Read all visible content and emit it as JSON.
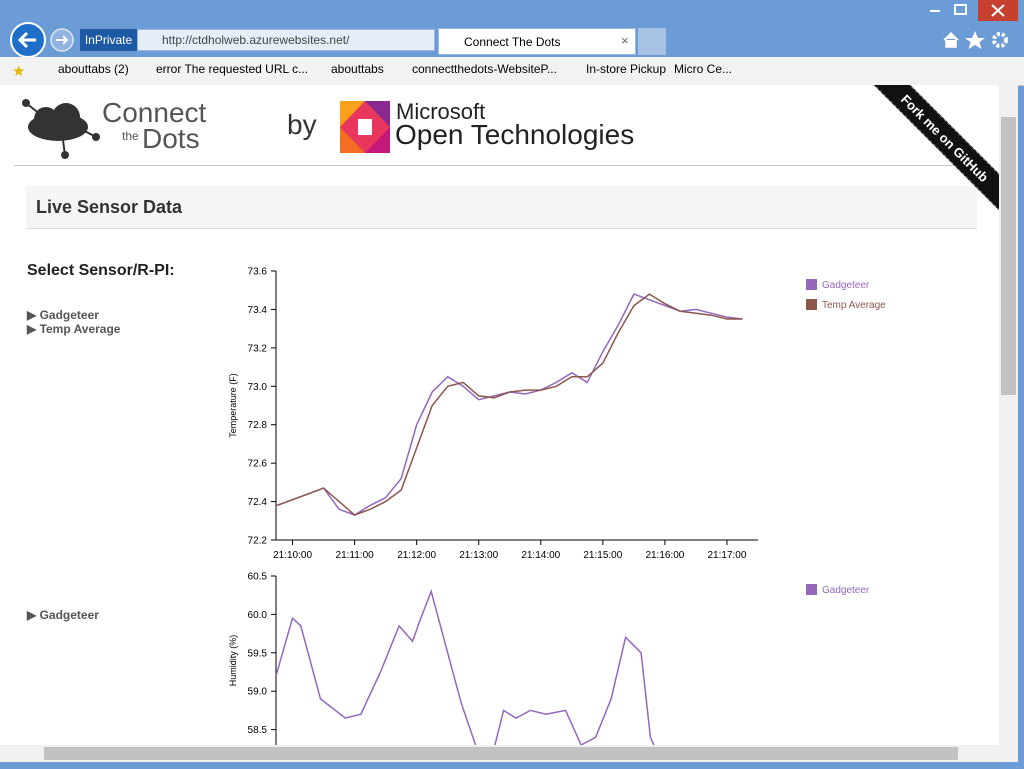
{
  "browser": {
    "in_private": "InPrivate",
    "address": "http://ctdholweb.azurewebsites.net/",
    "tab": "Connect The Dots",
    "favorites": [
      "abouttabs (2)",
      "error The requested URL c...",
      "abouttabs",
      "connectthedots-WebsiteP...",
      "In-store Pickup",
      "Micro Ce..."
    ]
  },
  "header": {
    "logo_connect": "Connect",
    "logo_the": "the",
    "logo_dots": "Dots",
    "by": "by",
    "ms_company": "Microsoft",
    "ms_product": "Open Technologies",
    "ribbon": "Fork me on GitHub"
  },
  "panel_title": "Live Sensor Data",
  "sidebar": {
    "heading": "Select Sensor/R-PI:",
    "groups": [
      [
        "▶ Gadgeteer",
        "▶ Temp Average"
      ],
      [
        "▶ Gadgeteer"
      ]
    ]
  },
  "chart_data": [
    {
      "type": "line",
      "y_label": "Temperature (F)",
      "x": [
        "21:09:45",
        "21:10:00",
        "21:10:15",
        "21:10:30",
        "21:10:45",
        "21:11:00",
        "21:11:15",
        "21:11:30",
        "21:11:45",
        "21:12:00",
        "21:12:15",
        "21:12:30",
        "21:12:45",
        "21:13:00",
        "21:13:15",
        "21:13:30",
        "21:13:45",
        "21:14:00",
        "21:14:15",
        "21:14:30",
        "21:14:45",
        "21:15:00",
        "21:15:15",
        "21:15:30",
        "21:15:45",
        "21:16:00",
        "21:16:15",
        "21:16:30",
        "21:16:45",
        "21:17:00",
        "21:17:15"
      ],
      "series": [
        {
          "name": "Gadgeteer",
          "color": "#9467bd",
          "values": [
            72.38,
            72.41,
            72.44,
            72.47,
            72.36,
            72.33,
            72.38,
            72.42,
            72.52,
            72.8,
            72.97,
            73.05,
            73.0,
            72.93,
            72.95,
            72.97,
            72.96,
            72.98,
            73.02,
            73.07,
            73.02,
            73.18,
            73.32,
            73.48,
            73.45,
            73.42,
            73.39,
            73.4,
            73.38,
            73.36,
            73.35
          ]
        },
        {
          "name": "Temp Average",
          "color": "#8c564b",
          "values": [
            72.38,
            72.41,
            72.44,
            72.47,
            72.4,
            72.33,
            72.36,
            72.4,
            72.46,
            72.68,
            72.9,
            73.0,
            73.02,
            72.95,
            72.94,
            72.97,
            72.98,
            72.98,
            73.0,
            73.05,
            73.05,
            73.12,
            73.28,
            73.42,
            73.48,
            73.43,
            73.39,
            73.38,
            73.37,
            73.35,
            73.35
          ]
        }
      ],
      "xlim": [
        "21:09:44",
        "21:17:30"
      ],
      "xticks": [
        "21:10:00",
        "21:11:00",
        "21:12:00",
        "21:13:00",
        "21:14:00",
        "21:15:00",
        "21:16:00",
        "21:17:00"
      ],
      "ylim": [
        72.2,
        73.6
      ],
      "yticks": [
        72.2,
        72.4,
        72.6,
        72.8,
        {
          "value": 73,
          "label": "73.0"
        },
        73.2,
        73.4,
        73.6
      ],
      "grid": false,
      "legend": "upper right"
    },
    {
      "type": "line",
      "y_label": "Humidity (%)",
      "x": [
        "21:09:44",
        "21:10:00",
        "21:10:08",
        "21:10:27",
        "21:10:51",
        "21:11:06",
        "21:11:25",
        "21:11:43",
        "21:11:56",
        "21:12:04",
        "21:12:14",
        "21:12:28",
        "21:12:43",
        "21:12:57",
        "21:13:12",
        "21:13:24",
        "21:13:36",
        "21:13:50",
        "21:14:05",
        "21:14:24",
        "21:14:39",
        "21:14:53",
        "21:15:08",
        "21:15:22",
        "21:15:37",
        "21:15:46",
        "21:15:56"
      ],
      "series": [
        {
          "name": "Gadgeteer",
          "color": "#9467bd",
          "values": [
            59.2,
            59.95,
            59.85,
            58.9,
            58.65,
            58.7,
            59.25,
            59.85,
            59.65,
            59.95,
            60.3,
            59.6,
            58.85,
            58.3,
            58.1,
            58.75,
            58.65,
            58.75,
            58.7,
            58.75,
            58.3,
            58.4,
            58.9,
            59.7,
            59.5,
            58.4,
            58.1
          ]
        }
      ],
      "xlim": [
        "21:09:44",
        "21:17:30"
      ],
      "ylim": [
        58.0,
        60.5
      ],
      "yticks": [
        58.5,
        {
          "value": 59,
          "label": "59.0"
        },
        59.5,
        {
          "value": 60,
          "label": "60.0"
        },
        60.5
      ],
      "grid": false,
      "legend": "upper right"
    }
  ]
}
